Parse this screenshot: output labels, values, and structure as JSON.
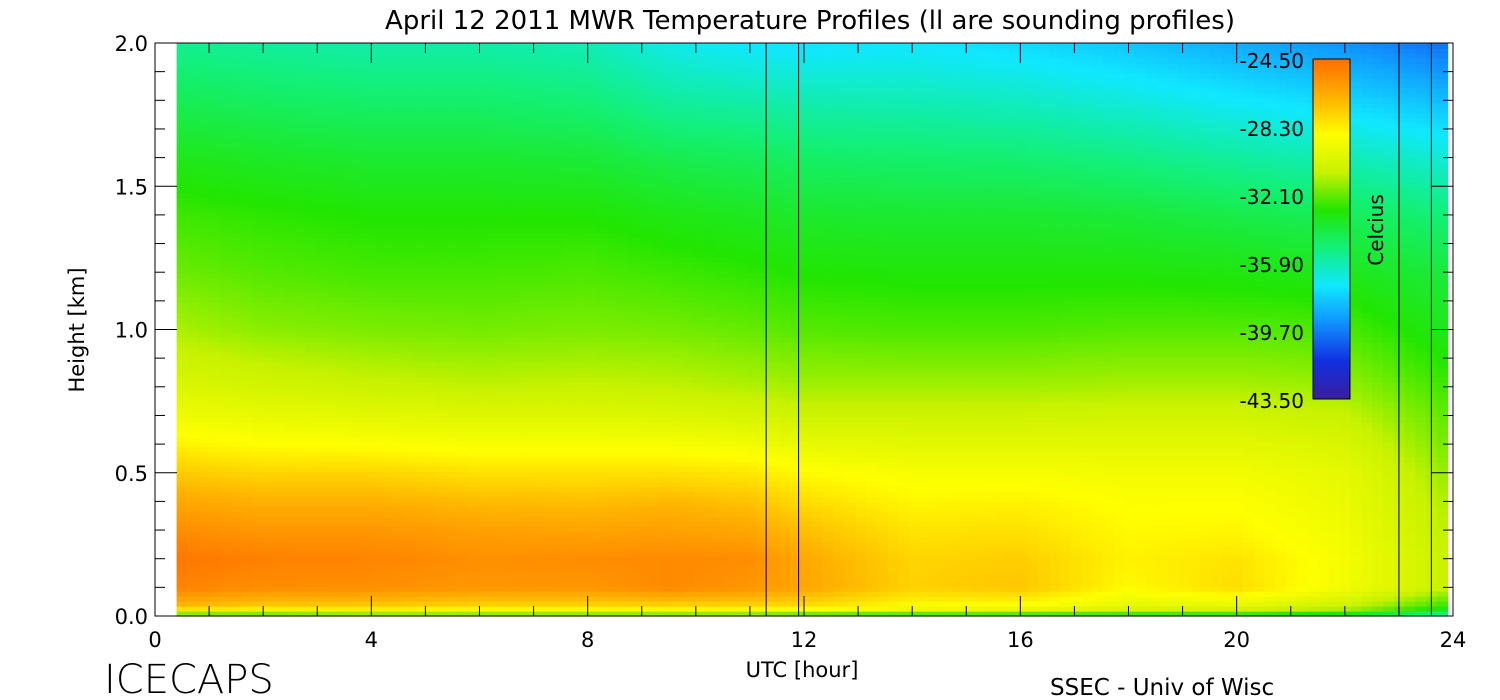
{
  "chart_data": {
    "type": "heatmap",
    "title": "April 12 2011 MWR Temperature Profiles (ll are sounding profiles)",
    "xlabel": "UTC [hour]",
    "ylabel": "Height [km]",
    "xlim": [
      0,
      24
    ],
    "ylim": [
      0,
      2.0
    ],
    "x_ticks": [
      "0",
      "4",
      "8",
      "12",
      "16",
      "20",
      "24"
    ],
    "y_ticks": [
      "0.0",
      "0.5",
      "1.0",
      "1.5",
      "2.0"
    ],
    "data_x_range": [
      0.4,
      23.9
    ],
    "sounding_times_hour": [
      11.3,
      11.9,
      23.0,
      23.6
    ],
    "colorbar": {
      "label": "Celcius",
      "ticks": [
        "-24.50",
        "-28.30",
        "-32.10",
        "-35.90",
        "-39.70",
        "-43.50"
      ],
      "range": [
        -43.5,
        -24.5
      ],
      "colormap": [
        "#3a1e9e",
        "#1030e0",
        "#1090ff",
        "#10e8ff",
        "#12f07a",
        "#22e600",
        "#c8f200",
        "#ffff00",
        "#ffb000",
        "#ff6e00"
      ]
    },
    "heights_km": [
      0.0,
      0.03,
      0.1,
      0.2,
      0.3,
      0.4,
      0.5,
      0.6,
      0.7,
      0.8,
      1.0,
      1.2,
      1.4,
      1.6,
      1.8,
      2.0
    ],
    "times_hour": [
      0.4,
      2,
      4,
      6,
      8,
      9.5,
      11,
      12,
      14,
      16,
      18,
      20,
      22,
      23.9
    ],
    "temperature_celsius": [
      [
        -33.5,
        -33.5,
        -33.0,
        -33.0,
        -33.0,
        -33.0,
        -33.0,
        -33.5,
        -33.5,
        -33.5,
        -33.5,
        -33.5,
        -34.0,
        -36.0
      ],
      [
        -27.0,
        -27.5,
        -27.5,
        -27.8,
        -27.8,
        -27.8,
        -27.8,
        -28.0,
        -28.8,
        -29.0,
        -29.8,
        -30.0,
        -30.8,
        -33.0
      ],
      [
        -25.2,
        -25.5,
        -25.6,
        -25.8,
        -25.8,
        -25.4,
        -25.8,
        -26.3,
        -27.5,
        -27.2,
        -28.6,
        -27.8,
        -29.2,
        -30.8
      ],
      [
        -24.8,
        -25.1,
        -25.2,
        -25.6,
        -25.5,
        -25.4,
        -25.5,
        -26.4,
        -27.6,
        -27.4,
        -28.4,
        -28.0,
        -29.1,
        -30.8
      ],
      [
        -25.5,
        -25.8,
        -25.8,
        -26.1,
        -26.2,
        -26.1,
        -26.3,
        -27.0,
        -28.0,
        -27.9,
        -28.6,
        -28.5,
        -29.3,
        -31.0
      ],
      [
        -26.3,
        -26.6,
        -26.6,
        -26.9,
        -27.0,
        -26.8,
        -27.1,
        -27.8,
        -28.5,
        -28.4,
        -28.8,
        -28.8,
        -29.5,
        -31.2
      ],
      [
        -27.3,
        -27.6,
        -27.6,
        -27.9,
        -27.9,
        -27.9,
        -28.1,
        -28.6,
        -29.0,
        -29.0,
        -29.2,
        -29.2,
        -29.7,
        -31.5
      ],
      [
        -28.4,
        -28.7,
        -28.8,
        -29.0,
        -29.0,
        -29.0,
        -29.2,
        -29.6,
        -29.8,
        -29.8,
        -29.8,
        -29.8,
        -30.2,
        -31.9
      ],
      [
        -29.3,
        -29.6,
        -29.8,
        -30.0,
        -30.0,
        -30.1,
        -30.3,
        -30.6,
        -30.6,
        -30.6,
        -30.5,
        -30.5,
        -30.8,
        -32.2
      ],
      [
        -30.1,
        -30.4,
        -30.7,
        -30.9,
        -30.8,
        -30.9,
        -31.1,
        -31.3,
        -31.3,
        -31.3,
        -31.2,
        -31.2,
        -31.4,
        -32.6
      ],
      [
        -31.2,
        -31.6,
        -31.8,
        -31.9,
        -31.8,
        -31.9,
        -32.1,
        -32.3,
        -32.4,
        -32.4,
        -32.3,
        -32.3,
        -32.4,
        -33.4
      ],
      [
        -32.0,
        -32.3,
        -32.5,
        -32.5,
        -32.4,
        -32.6,
        -32.8,
        -33.0,
        -33.1,
        -33.1,
        -33.1,
        -33.2,
        -33.4,
        -34.0
      ],
      [
        -32.6,
        -32.8,
        -33.0,
        -33.0,
        -33.0,
        -33.3,
        -33.5,
        -33.7,
        -33.8,
        -33.8,
        -33.9,
        -34.2,
        -34.5,
        -35.0
      ],
      [
        -33.4,
        -33.6,
        -33.8,
        -33.8,
        -33.9,
        -34.3,
        -34.5,
        -34.7,
        -34.8,
        -34.9,
        -35.2,
        -35.6,
        -36.0,
        -36.5
      ],
      [
        -34.4,
        -34.6,
        -34.8,
        -34.8,
        -35.0,
        -35.6,
        -35.8,
        -35.9,
        -36.0,
        -36.2,
        -36.6,
        -37.1,
        -37.6,
        -38.2
      ],
      [
        -35.4,
        -35.6,
        -35.8,
        -35.8,
        -36.0,
        -36.8,
        -37.2,
        -37.3,
        -37.2,
        -37.5,
        -38.0,
        -38.6,
        -39.2,
        -40.0
      ]
    ]
  },
  "branding": {
    "logo_text": "ICECAPS",
    "credit": "SSEC - Univ of Wisc"
  }
}
